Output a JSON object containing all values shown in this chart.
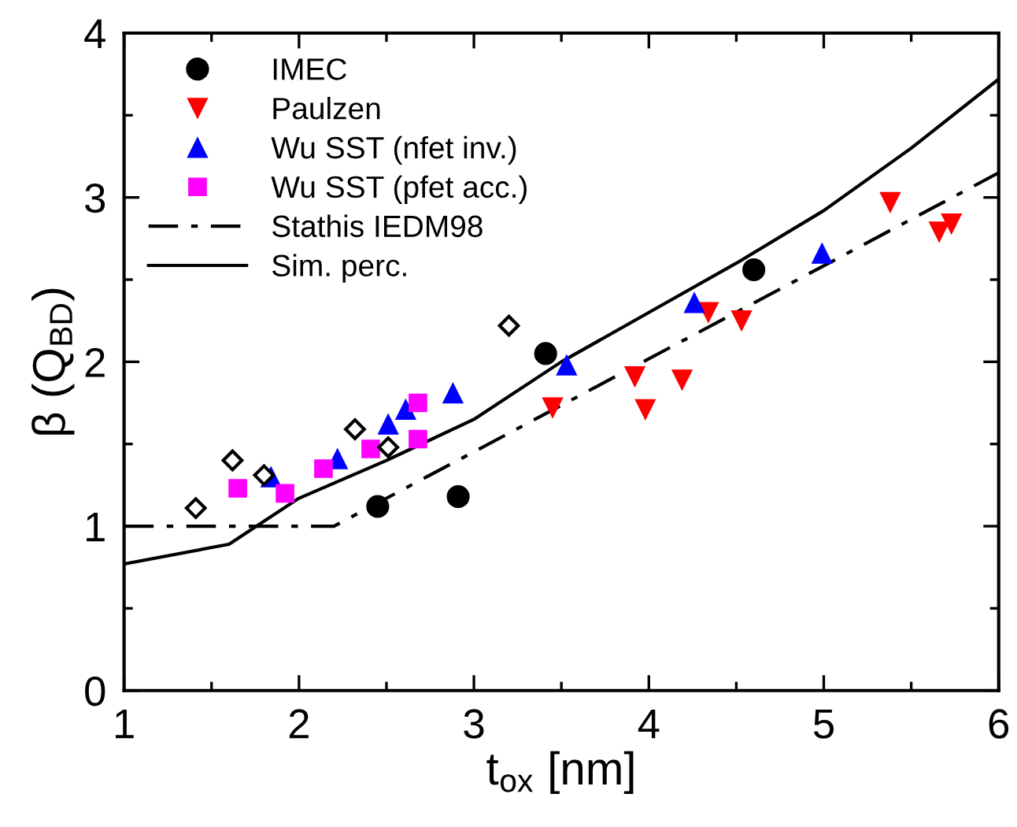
{
  "chart_data": {
    "type": "scatter",
    "xlabel": "t$_{ox}$ [nm]",
    "ylabel": "β (Q$_{BD}$)",
    "xlim": [
      1,
      6
    ],
    "xticks": [
      1,
      2,
      3,
      4,
      5,
      6
    ],
    "ylim": [
      0,
      4
    ],
    "yticks": [
      0,
      1,
      2,
      3,
      4
    ],
    "grid": false,
    "legend": "top left",
    "series": [
      {
        "name": "IMEC",
        "marker": "circle",
        "color": "#000000",
        "x": [
          2.45,
          2.91,
          3.41,
          4.6
        ],
        "values": [
          1.12,
          1.18,
          2.05,
          2.56
        ]
      },
      {
        "name": "Paulzen",
        "marker": "triangle_down",
        "color": "#ff0000",
        "x": [
          3.45,
          3.92,
          3.98,
          4.19,
          4.34,
          4.53,
          5.38,
          5.66,
          5.73
        ],
        "values": [
          1.72,
          1.91,
          1.71,
          1.89,
          2.3,
          2.25,
          2.97,
          2.79,
          2.84
        ]
      },
      {
        "name": "Wu SST (nfet inv.)",
        "marker": "triangle",
        "color": "#0000ff",
        "x": [
          1.84,
          2.22,
          2.51,
          2.61,
          2.88,
          3.53,
          4.26,
          4.99
        ],
        "values": [
          1.3,
          1.41,
          1.62,
          1.71,
          1.81,
          1.98,
          2.36,
          2.66
        ]
      },
      {
        "name": "Wu SST (pfet acc.)",
        "marker": "square",
        "color": "#ff00ff",
        "x": [
          1.65,
          1.92,
          2.14,
          2.41,
          2.68,
          2.68
        ],
        "values": [
          1.23,
          1.2,
          1.35,
          1.47,
          1.75,
          1.53
        ]
      },
      {
        "marker": "diamond",
        "color": "#000000",
        "x": [
          1.41,
          1.62,
          1.8,
          2.32,
          2.51,
          3.2
        ],
        "values": [
          1.11,
          1.4,
          1.31,
          1.59,
          1.48,
          2.22
        ]
      },
      {
        "name": "Stathis IEDM98",
        "type": "line",
        "line_style": "dashdot",
        "color": "#000000",
        "x": [
          1,
          2.2,
          6
        ],
        "values": [
          1,
          1,
          3.15
        ]
      },
      {
        "name": "Sim. perc.",
        "type": "line",
        "line_style": "solid",
        "color": "#000000",
        "x": [
          1,
          1.6,
          2,
          2.5,
          3,
          3.5,
          4,
          4.5,
          5,
          5.5,
          6
        ],
        "values": [
          0.77,
          0.89,
          1.17,
          1.4,
          1.65,
          2.0,
          2.3,
          2.6,
          2.92,
          3.3,
          3.72
        ]
      }
    ]
  }
}
